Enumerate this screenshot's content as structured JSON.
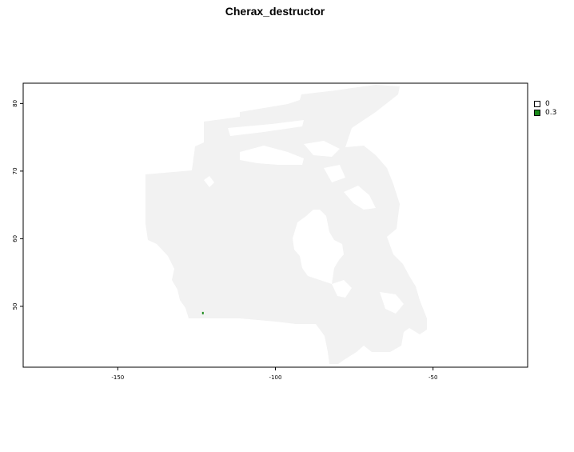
{
  "title": "Cherax_destructor",
  "map": {
    "region_fill": "#f2f2f2",
    "frame_color": "#000000",
    "x_axis": {
      "range": [
        -180,
        -20
      ],
      "ticks": [
        -150,
        -100,
        -50
      ]
    },
    "y_axis": {
      "range": [
        41,
        83
      ],
      "ticks": [
        50,
        60,
        70,
        80
      ]
    },
    "presence_point": {
      "lon": -123,
      "lat": 49,
      "value": "0.3",
      "color": "#1a8a1a"
    }
  },
  "legend": {
    "items": [
      {
        "label": "0",
        "color": "#ffffff"
      },
      {
        "label": "0.3",
        "color": "#1a8a1a"
      }
    ]
  }
}
